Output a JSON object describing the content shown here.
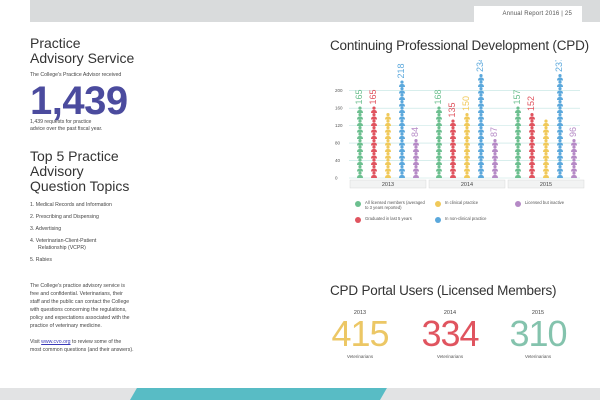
{
  "header": {
    "label": "Annual Report 2016 | 25"
  },
  "practice": {
    "title_line1": "Practice",
    "title_line2": "Advisory Service",
    "received_text": "The College's Practice Advisor received",
    "count": "1,439",
    "count_desc_line1": "1,439 requests for practice",
    "count_desc_line2": "advice over the past fiscal year."
  },
  "topics": {
    "title_line1": "Top 5 Practice",
    "title_line2": "Advisory",
    "title_line3": "Question Topics",
    "items": [
      {
        "text": "1. Medical Records and Information",
        "cont": ""
      },
      {
        "text": "2. Prescribing and Dispensing",
        "cont": ""
      },
      {
        "text": "3. Advertising",
        "cont": ""
      },
      {
        "text": "4. Veterinarian-Client-Patient",
        "cont": "Relationship (VCPR)"
      },
      {
        "text": "5. Rabies",
        "cont": ""
      }
    ]
  },
  "about": {
    "lines": [
      "The College's practice advisory service is",
      "free and confidential. Veterinarians, their",
      "staff and the public can contact the College",
      "with questions concerning the regulations,",
      "policy and expectations associated with the",
      "practice of veterinary medicine."
    ],
    "visit_prefix": "Visit ",
    "link_text": "www.cvo.org",
    "visit_suffix": " to review some of the",
    "visit_line2": "most common questions (and their answers)."
  },
  "cpd": {
    "title": "Continuing Professional Development (CPD)",
    "legend": [
      {
        "label": "All licensed members (averaged to 3 years reported)",
        "color": "#6cbf8f"
      },
      {
        "label": "In clinical practice",
        "color": "#f0c95a"
      },
      {
        "label": "Licensed but inactive",
        "color": "#b58ac6"
      },
      {
        "label": "Graduated in last 5 years",
        "color": "#e0545f"
      },
      {
        "label": "In non-clinical practice",
        "color": "#5ba8dc"
      }
    ]
  },
  "chart_data": {
    "type": "bar",
    "title": "Continuing Professional Development (CPD)",
    "categories": [
      "2013",
      "2014",
      "2015"
    ],
    "series": [
      {
        "name": "All licensed members (averaged to 3 years reported)",
        "color": "#6cbf8f",
        "values": [
          165,
          168,
          157
        ]
      },
      {
        "name": "Graduated in last 5 years",
        "color": "#e0545f",
        "values": [
          165,
          135,
          152
        ]
      },
      {
        "name": "In clinical practice",
        "color": "#f0c95a",
        "values": [
          142,
          150,
          132
        ]
      },
      {
        "name": "In non-clinical practice",
        "color": "#5ba8dc",
        "values": [
          218,
          234,
          237
        ]
      },
      {
        "name": "Licensed but inactive",
        "color": "#b58ac6",
        "values": [
          84,
          87,
          96
        ]
      }
    ],
    "value_labels": [
      [
        "165",
        "165",
        "",
        "218",
        "84"
      ],
      [
        "168",
        "135",
        "150",
        "234",
        "87"
      ],
      [
        "157",
        "152",
        "",
        "237",
        "96"
      ]
    ],
    "yticks": [
      0,
      40,
      80,
      120,
      160,
      200
    ],
    "ylim": [
      0,
      220
    ],
    "grid": true
  },
  "portal": {
    "title": "CPD Portal Users (Licensed Members)",
    "years": [
      {
        "year": "2013",
        "value": "415",
        "unit": "Veterinarians",
        "color": "#ecc765"
      },
      {
        "year": "2014",
        "value": "334",
        "unit": "Veterinarians",
        "color": "#e0545f"
      },
      {
        "year": "2015",
        "value": "310",
        "unit": "Veterinarians",
        "color": "#84c3ad"
      }
    ]
  }
}
